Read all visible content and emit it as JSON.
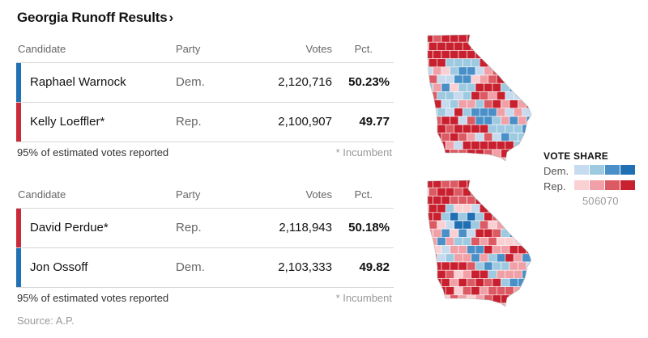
{
  "header": {
    "title": "Georgia Runoff Results",
    "chevron": "›"
  },
  "columns": {
    "candidate": "Candidate",
    "party": "Party",
    "votes": "Votes",
    "pct": "Pct."
  },
  "races": [
    {
      "rows": [
        {
          "name": "Raphael Warnock",
          "party": "Dem.",
          "votes": "2,120,716",
          "pct": "50.23%",
          "color": "#2171b5"
        },
        {
          "name": "Kelly Loeffler*",
          "party": "Rep.",
          "votes": "2,100,907",
          "pct": "49.77",
          "color": "#cb2a3a"
        }
      ],
      "reported": "95% of estimated votes reported",
      "incumbent_note": "* Incumbent"
    },
    {
      "rows": [
        {
          "name": "David Perdue*",
          "party": "Rep.",
          "votes": "2,118,943",
          "pct": "50.18%",
          "color": "#cb2a3a"
        },
        {
          "name": "Jon Ossoff",
          "party": "Dem.",
          "votes": "2,103,333",
          "pct": "49.82",
          "color": "#2171b5"
        }
      ],
      "reported": "95% of estimated votes reported",
      "incumbent_note": "* Incumbent"
    }
  ],
  "source": "Source: A.P.",
  "legend": {
    "title": "VOTE SHARE",
    "dem_label": "Dem.",
    "rep_label": "Rep.",
    "dem_colors": [
      "#c6dbef",
      "#9ecae1",
      "#4a90c8",
      "#1f6fb2"
    ],
    "rep_colors": [
      "#fbd0d3",
      "#f0a0a6",
      "#dc5a63",
      "#c8202f"
    ],
    "ticks": [
      "50",
      "60",
      "70"
    ]
  },
  "maps": {
    "outline_color": "#ffffff",
    "palette": {
      "d1": "#c6dbef",
      "d2": "#9ecae1",
      "d3": "#4a90c8",
      "d4": "#1f6fb2",
      "r1": "#fbd0d3",
      "r2": "#f0a0a6",
      "r3": "#dc5a63",
      "r4": "#c8202f"
    }
  }
}
